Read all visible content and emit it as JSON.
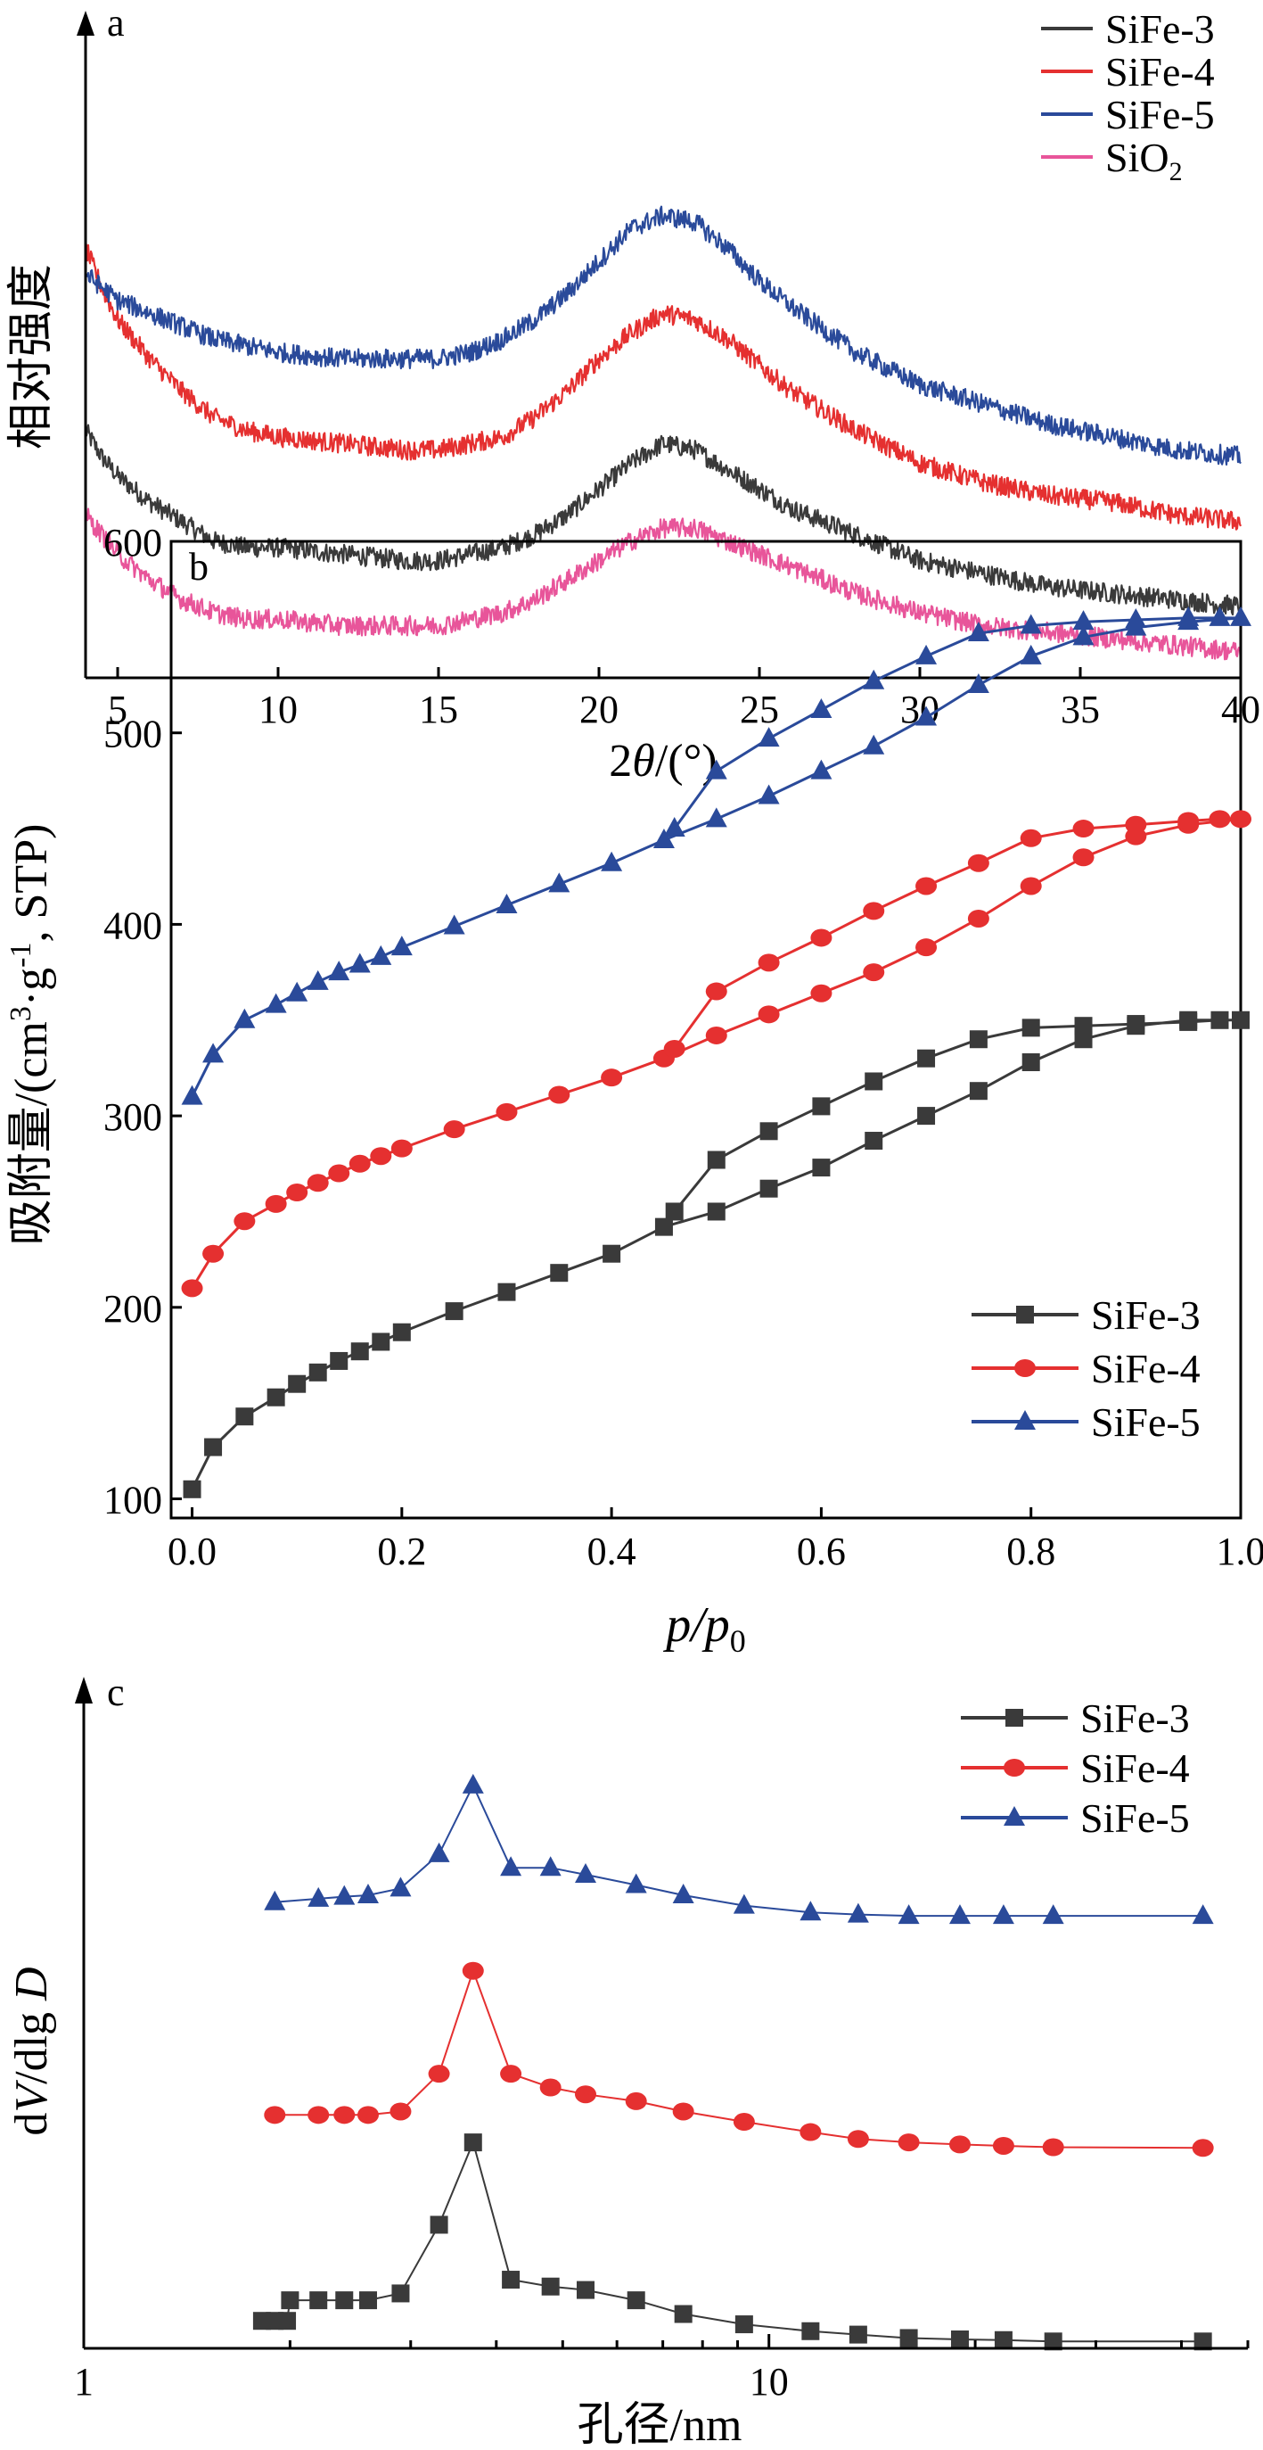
{
  "chart_data": [
    {
      "panel": "a",
      "type": "line",
      "xlabel": "2θ/(°)",
      "ylabel": "相对强度",
      "xlim": [
        4,
        40
      ],
      "x_ticks": [
        5,
        10,
        15,
        20,
        25,
        30,
        35,
        40
      ],
      "y_ticks": "none",
      "legend_placement": "top-right",
      "series": [
        {
          "name": "SiFe-3",
          "color": "#3a3a3a",
          "x": [
            4,
            4.5,
            5,
            6,
            7,
            8,
            9,
            10,
            12,
            14,
            15,
            16,
            17,
            18,
            19,
            20,
            21,
            22,
            23,
            24,
            25,
            26,
            28,
            30,
            32,
            34,
            36,
            38,
            40
          ],
          "y": [
            0.38,
            0.34,
            0.31,
            0.27,
            0.24,
            0.21,
            0.2,
            0.2,
            0.19,
            0.18,
            0.18,
            0.19,
            0.2,
            0.22,
            0.25,
            0.29,
            0.33,
            0.36,
            0.35,
            0.32,
            0.29,
            0.26,
            0.22,
            0.18,
            0.16,
            0.14,
            0.13,
            0.12,
            0.11
          ]
        },
        {
          "name": "SiFe-4",
          "color": "#e53030",
          "x": [
            4,
            4.5,
            5,
            6,
            7,
            8,
            9,
            10,
            12,
            14,
            15,
            16,
            17,
            18,
            19,
            20,
            21,
            22,
            23,
            24,
            25,
            26,
            28,
            30,
            32,
            34,
            36,
            38,
            40
          ],
          "y": [
            0.66,
            0.6,
            0.55,
            0.49,
            0.44,
            0.4,
            0.38,
            0.37,
            0.36,
            0.35,
            0.35,
            0.36,
            0.37,
            0.4,
            0.44,
            0.49,
            0.53,
            0.56,
            0.55,
            0.52,
            0.48,
            0.44,
            0.38,
            0.33,
            0.3,
            0.28,
            0.27,
            0.25,
            0.24
          ]
        },
        {
          "name": "SiFe-5",
          "color": "#2a4a9a",
          "x": [
            4,
            4.5,
            5,
            6,
            7,
            8,
            9,
            10,
            12,
            14,
            15,
            16,
            17,
            18,
            19,
            20,
            21,
            22,
            23,
            24,
            25,
            26,
            28,
            30,
            32,
            34,
            36,
            38,
            40
          ],
          "y": [
            0.62,
            0.6,
            0.58,
            0.56,
            0.54,
            0.52,
            0.51,
            0.5,
            0.49,
            0.49,
            0.49,
            0.5,
            0.52,
            0.55,
            0.59,
            0.64,
            0.69,
            0.71,
            0.7,
            0.66,
            0.61,
            0.57,
            0.5,
            0.45,
            0.42,
            0.39,
            0.37,
            0.35,
            0.34
          ]
        },
        {
          "name": "SiO",
          "name_subscript": "2",
          "color": "#e8559a",
          "x": [
            4,
            4.5,
            5,
            6,
            7,
            8,
            9,
            10,
            12,
            14,
            15,
            16,
            17,
            18,
            19,
            20,
            21,
            22,
            23,
            24,
            25,
            26,
            28,
            30,
            32,
            34,
            36,
            38,
            40
          ],
          "y": [
            0.25,
            0.22,
            0.19,
            0.15,
            0.12,
            0.1,
            0.09,
            0.09,
            0.08,
            0.08,
            0.08,
            0.09,
            0.1,
            0.12,
            0.15,
            0.18,
            0.21,
            0.23,
            0.23,
            0.21,
            0.19,
            0.17,
            0.13,
            0.1,
            0.08,
            0.07,
            0.06,
            0.05,
            0.04
          ]
        }
      ]
    },
    {
      "panel": "b",
      "type": "line",
      "xlabel": "p/p",
      "xlabel_subscript": "0",
      "ylabel": "吸附量/(cm",
      "ylabel_sup1": "3",
      "ylabel_mid": "·g",
      "ylabel_sup2": "-1",
      "ylabel_end": ", STP)",
      "xlim": [
        -0.02,
        1.0
      ],
      "ylim": [
        90,
        600
      ],
      "x_ticks": [
        "0.0",
        "0.2",
        "0.4",
        "0.6",
        "0.8",
        "1.0"
      ],
      "y_ticks": [
        100,
        200,
        300,
        400,
        500,
        600
      ],
      "legend_placement": "bottom-right",
      "series": [
        {
          "name": "SiFe-3",
          "color": "#3a3a3a",
          "marker": "square",
          "x": [
            0.0,
            0.02,
            0.05,
            0.08,
            0.1,
            0.12,
            0.14,
            0.16,
            0.18,
            0.2,
            0.25,
            0.3,
            0.35,
            0.4,
            0.45,
            0.5,
            0.55,
            0.6,
            0.65,
            0.7,
            0.75,
            0.8,
            0.85,
            0.9,
            0.95,
            1.0,
            0.98,
            0.95,
            0.9,
            0.85,
            0.8,
            0.75,
            0.7,
            0.65,
            0.6,
            0.55,
            0.5,
            0.46
          ],
          "y": [
            105,
            127,
            143,
            153,
            160,
            166,
            172,
            177,
            182,
            187,
            198,
            208,
            218,
            228,
            242,
            250,
            262,
            273,
            287,
            300,
            313,
            328,
            340,
            347,
            350,
            350,
            350,
            349,
            348,
            347,
            346,
            340,
            330,
            318,
            305,
            292,
            277,
            250
          ]
        },
        {
          "name": "SiFe-4",
          "color": "#e53030",
          "marker": "circle",
          "x": [
            0.0,
            0.02,
            0.05,
            0.08,
            0.1,
            0.12,
            0.14,
            0.16,
            0.18,
            0.2,
            0.25,
            0.3,
            0.35,
            0.4,
            0.45,
            0.5,
            0.55,
            0.6,
            0.65,
            0.7,
            0.75,
            0.8,
            0.85,
            0.9,
            0.95,
            1.0,
            0.98,
            0.95,
            0.9,
            0.85,
            0.8,
            0.75,
            0.7,
            0.65,
            0.6,
            0.55,
            0.5,
            0.46
          ],
          "y": [
            210,
            228,
            245,
            254,
            260,
            265,
            270,
            275,
            279,
            283,
            293,
            302,
            311,
            320,
            330,
            342,
            353,
            364,
            375,
            388,
            403,
            420,
            435,
            446,
            452,
            455,
            455,
            454,
            452,
            450,
            445,
            432,
            420,
            407,
            393,
            380,
            365,
            335
          ]
        },
        {
          "name": "SiFe-5",
          "color": "#2a4a9a",
          "marker": "triangle",
          "x": [
            0.0,
            0.02,
            0.05,
            0.08,
            0.1,
            0.12,
            0.14,
            0.16,
            0.18,
            0.2,
            0.25,
            0.3,
            0.35,
            0.4,
            0.45,
            0.5,
            0.55,
            0.6,
            0.65,
            0.7,
            0.75,
            0.8,
            0.85,
            0.9,
            0.95,
            1.0,
            0.98,
            0.95,
            0.9,
            0.85,
            0.8,
            0.75,
            0.7,
            0.65,
            0.6,
            0.55,
            0.5,
            0.46
          ],
          "y": [
            310,
            332,
            350,
            358,
            364,
            370,
            375,
            379,
            383,
            388,
            399,
            410,
            421,
            432,
            444,
            455,
            467,
            480,
            493,
            508,
            525,
            540,
            550,
            555,
            558,
            560,
            560,
            560,
            559,
            558,
            556,
            552,
            540,
            527,
            512,
            497,
            480,
            450
          ]
        }
      ]
    },
    {
      "panel": "c",
      "type": "line",
      "xscale": "log",
      "xlabel": "孔径/nm",
      "ylabel": "dV/dlg D",
      "xlim": [
        1,
        50
      ],
      "x_ticks": [
        "1",
        "10"
      ],
      "y_ticks": "none",
      "legend_placement": "top-right",
      "series": [
        {
          "name": "SiFe-3",
          "color": "#3a3a3a",
          "marker": "square",
          "x": [
            1.82,
            1.9,
            1.98,
            2.0,
            2.2,
            2.4,
            2.6,
            2.9,
            3.3,
            3.7,
            4.2,
            4.8,
            5.4,
            6.4,
            7.5,
            9.2,
            11.5,
            13.5,
            16.0,
            19.0,
            22.0,
            26.0,
            43.0
          ],
          "y": [
            0.04,
            0.04,
            0.04,
            0.07,
            0.07,
            0.07,
            0.07,
            0.08,
            0.18,
            0.3,
            0.1,
            0.09,
            0.085,
            0.07,
            0.05,
            0.035,
            0.025,
            0.02,
            0.015,
            0.013,
            0.012,
            0.01,
            0.01
          ]
        },
        {
          "name": "SiFe-4",
          "color": "#e53030",
          "marker": "circle",
          "x": [
            1.9,
            2.2,
            2.4,
            2.6,
            2.9,
            3.3,
            3.7,
            4.2,
            4.8,
            5.4,
            6.4,
            7.5,
            9.2,
            11.5,
            13.5,
            16.0,
            19.0,
            22.0,
            26.0,
            43.0
          ],
          "y": [
            0.34,
            0.34,
            0.34,
            0.34,
            0.345,
            0.4,
            0.55,
            0.4,
            0.38,
            0.37,
            0.36,
            0.345,
            0.33,
            0.315,
            0.305,
            0.3,
            0.297,
            0.295,
            0.293,
            0.292
          ]
        },
        {
          "name": "SiFe-5",
          "color": "#2a4a9a",
          "marker": "triangle",
          "x": [
            1.9,
            2.2,
            2.4,
            2.6,
            2.9,
            3.3,
            3.7,
            4.2,
            4.8,
            5.4,
            6.4,
            7.5,
            9.2,
            11.5,
            13.5,
            16.0,
            19.0,
            22.0,
            26.0,
            43.0
          ],
          "y": [
            0.65,
            0.655,
            0.658,
            0.66,
            0.67,
            0.72,
            0.82,
            0.7,
            0.7,
            0.69,
            0.675,
            0.66,
            0.645,
            0.635,
            0.632,
            0.63,
            0.63,
            0.63,
            0.63,
            0.63
          ]
        }
      ]
    }
  ]
}
